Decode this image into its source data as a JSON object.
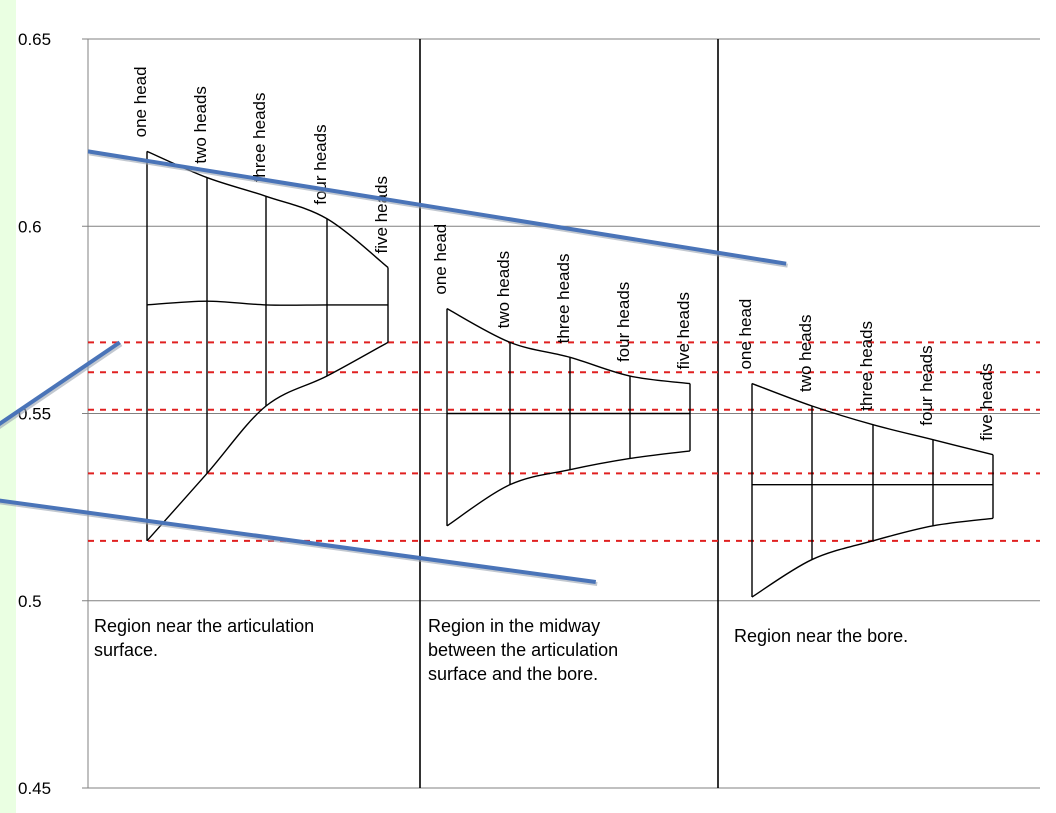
{
  "chart_data": {
    "type": "line",
    "ylim": [
      0.45,
      0.65
    ],
    "y_ticks": [
      "0.65",
      "0.6",
      "0.55",
      "0.5",
      "0.45"
    ],
    "grid": true,
    "head_labels": [
      "one head",
      "two heads",
      "three heads",
      "four heads",
      "five heads"
    ],
    "regions": [
      {
        "label_lines": [
          "Region near the articulation",
          "surface."
        ],
        "upper": [
          0.62,
          0.613,
          0.608,
          0.602,
          0.589
        ],
        "middle": [
          0.579,
          0.58,
          0.579,
          0.579,
          0.579
        ],
        "lower": [
          0.516,
          0.534,
          0.552,
          0.56,
          0.569
        ]
      },
      {
        "label_lines": [
          "Region in the midway",
          "between the articulation",
          "surface and the bore."
        ],
        "upper": [
          0.578,
          0.569,
          0.565,
          0.56,
          0.558
        ],
        "middle": [
          0.55,
          0.55,
          0.55,
          0.55,
          0.55
        ],
        "lower": [
          0.52,
          0.531,
          0.535,
          0.538,
          0.54
        ]
      },
      {
        "label_lines": [
          "Region near the bore."
        ],
        "upper": [
          0.558,
          0.552,
          0.547,
          0.543,
          0.539
        ],
        "middle": [
          0.531,
          0.531,
          0.531,
          0.531,
          0.531
        ],
        "lower": [
          0.501,
          0.511,
          0.516,
          0.52,
          0.522
        ]
      }
    ],
    "reference_levels": [
      0.569,
      0.561,
      0.551,
      0.534,
      0.516
    ],
    "trend_lines": [
      {
        "name": "upper-trend",
        "from": [
          0.0,
          0.62
        ],
        "to": [
          2.2,
          0.59
        ]
      },
      {
        "name": "middle-trend",
        "from": [
          -0.3,
          0.546
        ],
        "to": [
          0.1,
          0.569
        ]
      },
      {
        "name": "lower-trend",
        "from": [
          -0.3,
          0.527
        ],
        "to": [
          1.6,
          0.505
        ]
      }
    ]
  },
  "colors": {
    "background": "#eaffe2",
    "reference_line": "#e02020",
    "trend_line": "#4a74b8"
  }
}
